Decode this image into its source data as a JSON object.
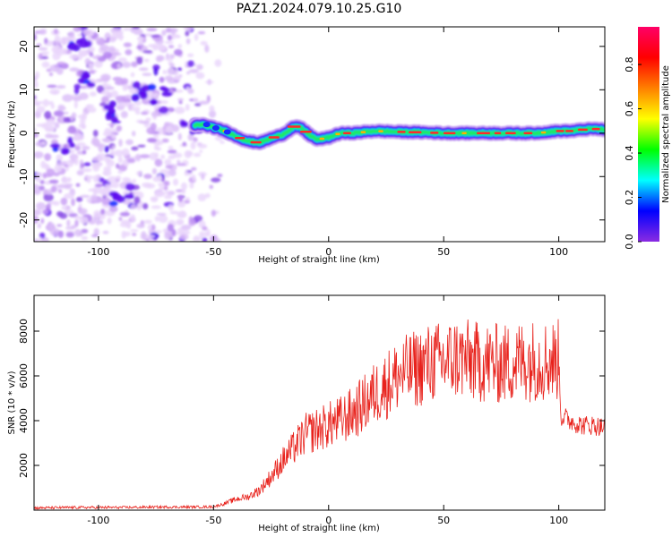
{
  "title": "PAZ1.2024.079.10.25.G10",
  "chart_data": [
    {
      "type": "heatmap",
      "xlabel": "Height of straight line (km)",
      "ylabel": "Frequency (Hz)",
      "xlim": [
        -128,
        120
      ],
      "ylim": [
        -25,
        24.5
      ],
      "xticks": [
        -100,
        -50,
        0,
        50,
        100
      ],
      "xtick_labels": [
        "-100",
        "-50",
        "0",
        "50",
        "100"
      ],
      "yticks": [
        -20,
        -10,
        0,
        10,
        20
      ],
      "ytick_labels": [
        "-20",
        "-10",
        "0",
        "10",
        "20"
      ],
      "noise_region_x": [
        -128,
        -52
      ],
      "signal_trace": {
        "x": [
          -58,
          -55,
          -50,
          -45,
          -40,
          -35,
          -30,
          -25,
          -20,
          -15,
          -12,
          -8,
          -5,
          0,
          5,
          10,
          20,
          30,
          40,
          50,
          60,
          70,
          80,
          90,
          100,
          105,
          110,
          115,
          120
        ],
        "y": [
          1.8,
          2.0,
          1.3,
          0.5,
          -0.8,
          -1.9,
          -2.2,
          -1.2,
          -0.3,
          1.5,
          1.2,
          -0.5,
          -1.5,
          -1.0,
          0,
          0,
          0.5,
          0.3,
          0.2,
          0,
          0,
          0,
          0,
          0,
          0.5,
          0.5,
          0.8,
          1.0,
          0.8
        ]
      },
      "colorbar": {
        "label": "Normalized spectral amplitude",
        "range": [
          0,
          0.97
        ],
        "ticks": [
          0.0,
          0.2,
          0.4,
          0.6,
          0.8
        ],
        "tick_labels": [
          "0.0",
          "0.2",
          "0.4",
          "0.6",
          "0.8"
        ],
        "colormap": "gist_rainbow_r",
        "colors": [
          "#8a2be2",
          "#0000ff",
          "#00ffff",
          "#00ff00",
          "#ffff00",
          "#ff8000",
          "#ff0000",
          "#ff0066"
        ]
      }
    },
    {
      "type": "line",
      "xlabel": "Height of straight line (km)",
      "ylabel": "SNR (10 * v/v)",
      "xlim": [
        -128,
        120
      ],
      "ylim": [
        0,
        9600
      ],
      "xticks": [
        -100,
        -50,
        0,
        50,
        100
      ],
      "xtick_labels": [
        "-100",
        "-50",
        "0",
        "50",
        "100"
      ],
      "yticks": [
        2000,
        4000,
        6000,
        8000
      ],
      "ytick_labels": [
        "2000",
        "4000",
        "6000",
        "8000"
      ],
      "series": [
        {
          "color": "#e8221c",
          "x": [
            -128,
            -110,
            -90,
            -70,
            -60,
            -50,
            -45,
            -40,
            -35,
            -30,
            -25,
            -20,
            -15,
            -10,
            -5,
            0,
            5,
            10,
            15,
            20,
            25,
            30,
            35,
            40,
            45,
            50,
            55,
            60,
            65,
            70,
            75,
            80,
            85,
            90,
            95,
            100,
            101,
            105,
            110,
            115,
            120
          ],
          "y": [
            100,
            120,
            120,
            140,
            140,
            150,
            300,
            500,
            600,
            900,
            1500,
            2200,
            2800,
            3400,
            3600,
            3800,
            4000,
            4300,
            4700,
            5200,
            5600,
            6000,
            6200,
            6400,
            6600,
            6600,
            6800,
            6700,
            6600,
            6600,
            6500,
            6600,
            6700,
            6700,
            6700,
            6700,
            4200,
            4000,
            3800,
            3800,
            3700
          ]
        }
      ]
    }
  ]
}
